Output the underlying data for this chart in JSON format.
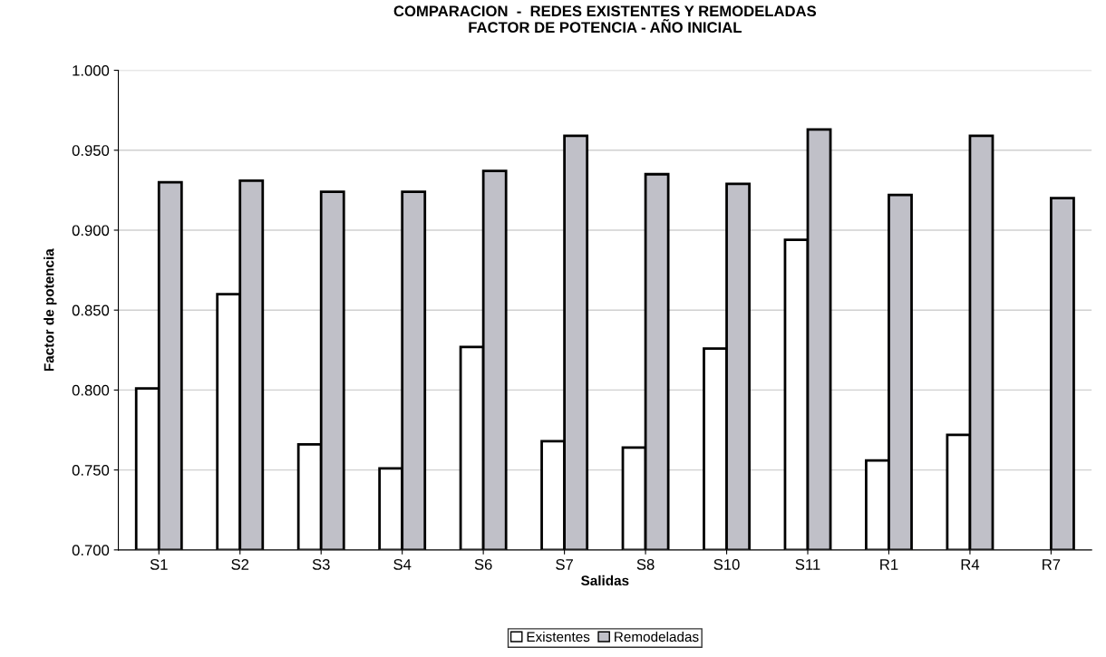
{
  "chart_data": {
    "type": "bar",
    "title": "COMPARACION  -  REDES EXISTENTES Y REMODELADAS\nFACTOR DE POTENCIA - AÑO INICIAL",
    "xlabel": "Salidas",
    "ylabel": "Factor de potencia",
    "categories": [
      "S1",
      "S2",
      "S3",
      "S4",
      "S6",
      "S7",
      "S8",
      "S10",
      "S11",
      "R1",
      "R4",
      "R7"
    ],
    "series": [
      {
        "name": "Existentes",
        "color": "#ffffff",
        "values": [
          0.801,
          0.86,
          0.766,
          0.751,
          0.827,
          0.768,
          0.764,
          0.826,
          0.894,
          0.756,
          0.772,
          null
        ]
      },
      {
        "name": "Remodeladas",
        "color": "#c0c0c8",
        "values": [
          0.93,
          0.931,
          0.924,
          0.924,
          0.937,
          0.959,
          0.935,
          0.929,
          0.963,
          0.922,
          0.959,
          0.92
        ]
      }
    ],
    "ylim": [
      0.7,
      1.0
    ],
    "yticks": [
      {
        "value": 0.7,
        "label": "0.700"
      },
      {
        "value": 0.75,
        "label": "0.750"
      },
      {
        "value": 0.8,
        "label": "0.800"
      },
      {
        "value": 0.85,
        "label": "0.850"
      },
      {
        "value": 0.9,
        "label": "0.900"
      },
      {
        "value": 0.95,
        "label": "0.950"
      },
      {
        "value": 1.0,
        "label": "1.000"
      }
    ],
    "grid": "y",
    "legend": "bottom"
  }
}
